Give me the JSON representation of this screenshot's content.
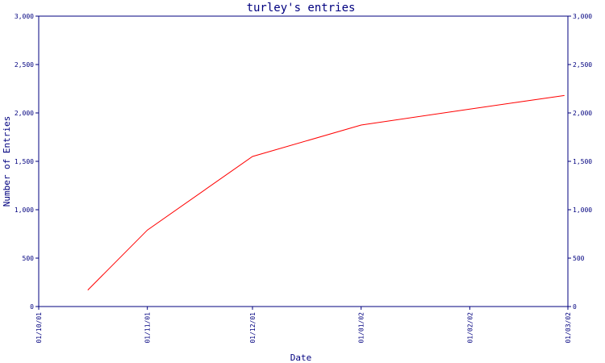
{
  "colors": {
    "axis": "#00007f",
    "series": "#ff0000",
    "background": "#ffffff"
  },
  "chart_data": {
    "type": "line",
    "title": "turley's entries",
    "xlabel": "Date",
    "ylabel": "Number of Entries",
    "x_ticks": [
      "01/10/01",
      "01/11/01",
      "01/12/01",
      "01/01/02",
      "01/02/02",
      "01/03/02"
    ],
    "y_ticks": [
      0,
      500,
      1000,
      1500,
      2000,
      2500,
      3000
    ],
    "y_tick_labels": [
      "0",
      "500",
      "1,000",
      "1,500",
      "2,000",
      "2,500",
      "3,000"
    ],
    "ylim": [
      0,
      3000
    ],
    "xlim": [
      "2001-10-01",
      "2002-03-01"
    ],
    "grid": false,
    "y_axis_both_sides": true,
    "series": [
      {
        "x": [
          "2001-10-15",
          "2001-11-01",
          "2001-12-01",
          "2002-01-01",
          "2002-02-01",
          "2002-02-28"
        ],
        "y": [
          170,
          790,
          1550,
          1875,
          2040,
          2180
        ]
      }
    ]
  }
}
